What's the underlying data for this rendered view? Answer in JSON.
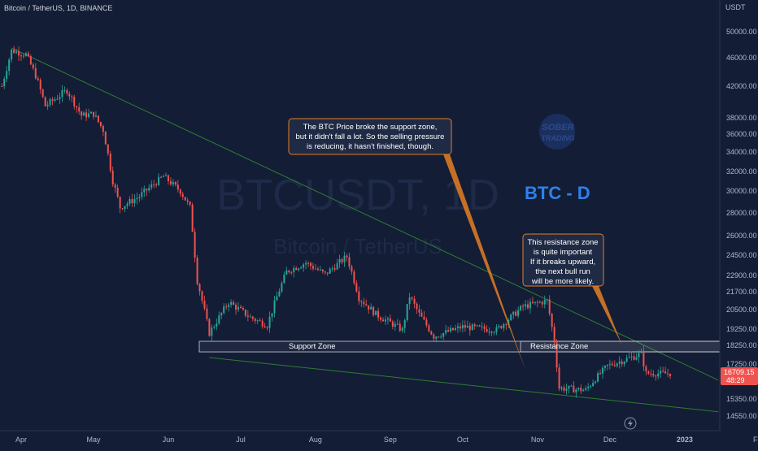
{
  "header": {
    "symbol_line": "Bitcoin / TetherUS, 1D, BINANCE"
  },
  "watermark": {
    "ticker": "BTCUSDT, 1D",
    "name": "Bitcoin / TetherUS"
  },
  "logo": {
    "line1": "SOBER",
    "line2": "TRADING"
  },
  "colors": {
    "background": "#131d36",
    "up": "#26a69a",
    "down": "#ef5350",
    "trendline": "#2e7d32",
    "accent_blue": "#2f80ed",
    "callout_border": "#e67e22",
    "zone_border": "#cfd3dc"
  },
  "annotations": {
    "title": "BTC - D",
    "callout_left": [
      "The BTC Price broke the support zone,",
      "but it didn't fall a lot. So the selling pressure",
      "is reducing, it hasn't finished, though."
    ],
    "callout_right": [
      "This resistance zone",
      "is quite important",
      "If it breaks upward,",
      "the next bull run",
      "will be more likely."
    ],
    "support_zone_label": "Support Zone",
    "resistance_zone_label": "Resistance Zone"
  },
  "price_badge": {
    "price": "16709.15",
    "countdown": "48:29"
  },
  "chart_data": {
    "type": "candlestick",
    "y_unit": "USDT",
    "y_ticks": [
      50000,
      46000,
      42000,
      38000,
      36000,
      34000,
      32000,
      30000,
      28000,
      26000,
      24500,
      22900,
      21700,
      20500,
      19250,
      18250,
      17250,
      16250,
      15350,
      14550
    ],
    "y_tick_labels": [
      "50000.00",
      "46000.00",
      "42000.00",
      "38000.00",
      "36000.00",
      "34000.00",
      "32000.00",
      "30000.00",
      "28000.00",
      "26000.00",
      "24500.00",
      "22900.00",
      "21700.00",
      "20500.00",
      "19250.00",
      "18250.00",
      "17250.00",
      "16250.00",
      "15350.00",
      "14550.00"
    ],
    "x_ticks": [
      {
        "label": "Apr",
        "date": "2022-04-01"
      },
      {
        "label": "May",
        "date": "2022-05-01"
      },
      {
        "label": "Jun",
        "date": "2022-06-01"
      },
      {
        "label": "Jul",
        "date": "2022-07-01"
      },
      {
        "label": "Aug",
        "date": "2022-08-01"
      },
      {
        "label": "Sep",
        "date": "2022-09-01"
      },
      {
        "label": "Oct",
        "date": "2022-10-01"
      },
      {
        "label": "Nov",
        "date": "2022-11-01"
      },
      {
        "label": "Dec",
        "date": "2022-12-01"
      },
      {
        "label": "2023",
        "date": "2023-01-01"
      },
      {
        "label": "Feb",
        "date": "2023-02-01"
      }
    ],
    "last_price": 16709.15,
    "support_zone": {
      "from": 17900,
      "to": 18500
    },
    "resistance_zone": {
      "from": 17900,
      "to": 18500
    },
    "trendlines": [
      {
        "name": "descending resistance",
        "from": {
          "date": "2022-03-28",
          "price": 47500
        },
        "to": {
          "date": "2023-01-15",
          "price": 16300
        }
      },
      {
        "name": "descending support",
        "from": {
          "date": "2022-06-18",
          "price": 17600
        },
        "to": {
          "date": "2023-01-15",
          "price": 14750
        }
      }
    ],
    "close_path": [
      [
        "2022-03-24",
        42000
      ],
      [
        "2022-03-28",
        47100
      ],
      [
        "2022-04-03",
        46500
      ],
      [
        "2022-04-07",
        43500
      ],
      [
        "2022-04-11",
        39500
      ],
      [
        "2022-04-20",
        41500
      ],
      [
        "2022-04-26",
        38300
      ],
      [
        "2022-05-01",
        38500
      ],
      [
        "2022-05-05",
        36500
      ],
      [
        "2022-05-09",
        31000
      ],
      [
        "2022-05-12",
        28500
      ],
      [
        "2022-05-20",
        29500
      ],
      [
        "2022-05-30",
        31500
      ],
      [
        "2022-06-06",
        30000
      ],
      [
        "2022-06-10",
        28500
      ],
      [
        "2022-06-13",
        22500
      ],
      [
        "2022-06-18",
        19000
      ],
      [
        "2022-06-26",
        21000
      ],
      [
        "2022-07-05",
        20000
      ],
      [
        "2022-07-12",
        19500
      ],
      [
        "2022-07-20",
        23200
      ],
      [
        "2022-07-28",
        23900
      ],
      [
        "2022-08-05",
        23000
      ],
      [
        "2022-08-14",
        24400
      ],
      [
        "2022-08-19",
        21300
      ],
      [
        "2022-08-26",
        20200
      ],
      [
        "2022-09-06",
        19200
      ],
      [
        "2022-09-09",
        21400
      ],
      [
        "2022-09-13",
        20200
      ],
      [
        "2022-09-19",
        18800
      ],
      [
        "2022-10-01",
        19400
      ],
      [
        "2022-10-15",
        19200
      ],
      [
        "2022-10-26",
        20700
      ],
      [
        "2022-11-05",
        21100
      ],
      [
        "2022-11-08",
        18500
      ],
      [
        "2022-11-10",
        15900
      ],
      [
        "2022-11-21",
        15800
      ],
      [
        "2022-11-30",
        17150
      ],
      [
        "2022-12-14",
        17800
      ],
      [
        "2022-12-16",
        16700
      ],
      [
        "2022-12-27",
        16700
      ]
    ]
  }
}
